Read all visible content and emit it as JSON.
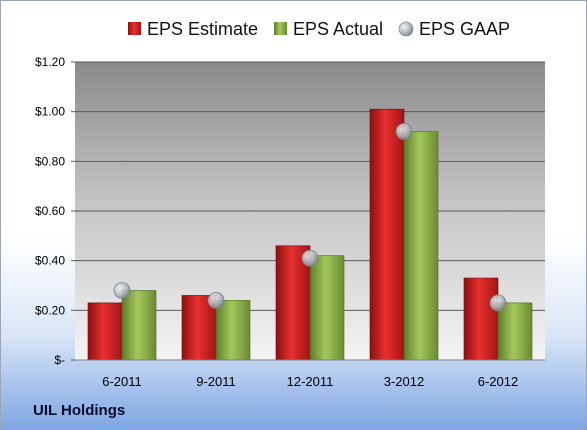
{
  "company": "UIL Holdings",
  "chart_data": {
    "type": "bar",
    "categories": [
      "6-2011",
      "9-2011",
      "12-2011",
      "3-2012",
      "6-2012"
    ],
    "series": [
      {
        "name": "EPS Estimate",
        "kind": "bar",
        "color": "#cc1f1f",
        "values": [
          0.23,
          0.26,
          0.46,
          1.01,
          0.33
        ]
      },
      {
        "name": "EPS Actual",
        "kind": "bar",
        "color": "#8aae45",
        "values": [
          0.28,
          0.24,
          0.42,
          0.92,
          0.23
        ]
      },
      {
        "name": "EPS GAAP",
        "kind": "marker",
        "color": "#b8bcc4",
        "values": [
          0.28,
          0.24,
          0.41,
          0.92,
          0.23
        ]
      }
    ],
    "ylim": [
      0,
      1.2
    ],
    "yticks": [
      {
        "value": 0,
        "label": "$-"
      },
      {
        "value": 0.2,
        "label": "$0.20"
      },
      {
        "value": 0.4,
        "label": "$0.40"
      },
      {
        "value": 0.6,
        "label": "$0.60"
      },
      {
        "value": 0.8,
        "label": "$0.80"
      },
      {
        "value": 1.0,
        "label": "$1.00"
      },
      {
        "value": 1.2,
        "label": "$1.20"
      }
    ],
    "grid": true,
    "legend_position": "top"
  }
}
